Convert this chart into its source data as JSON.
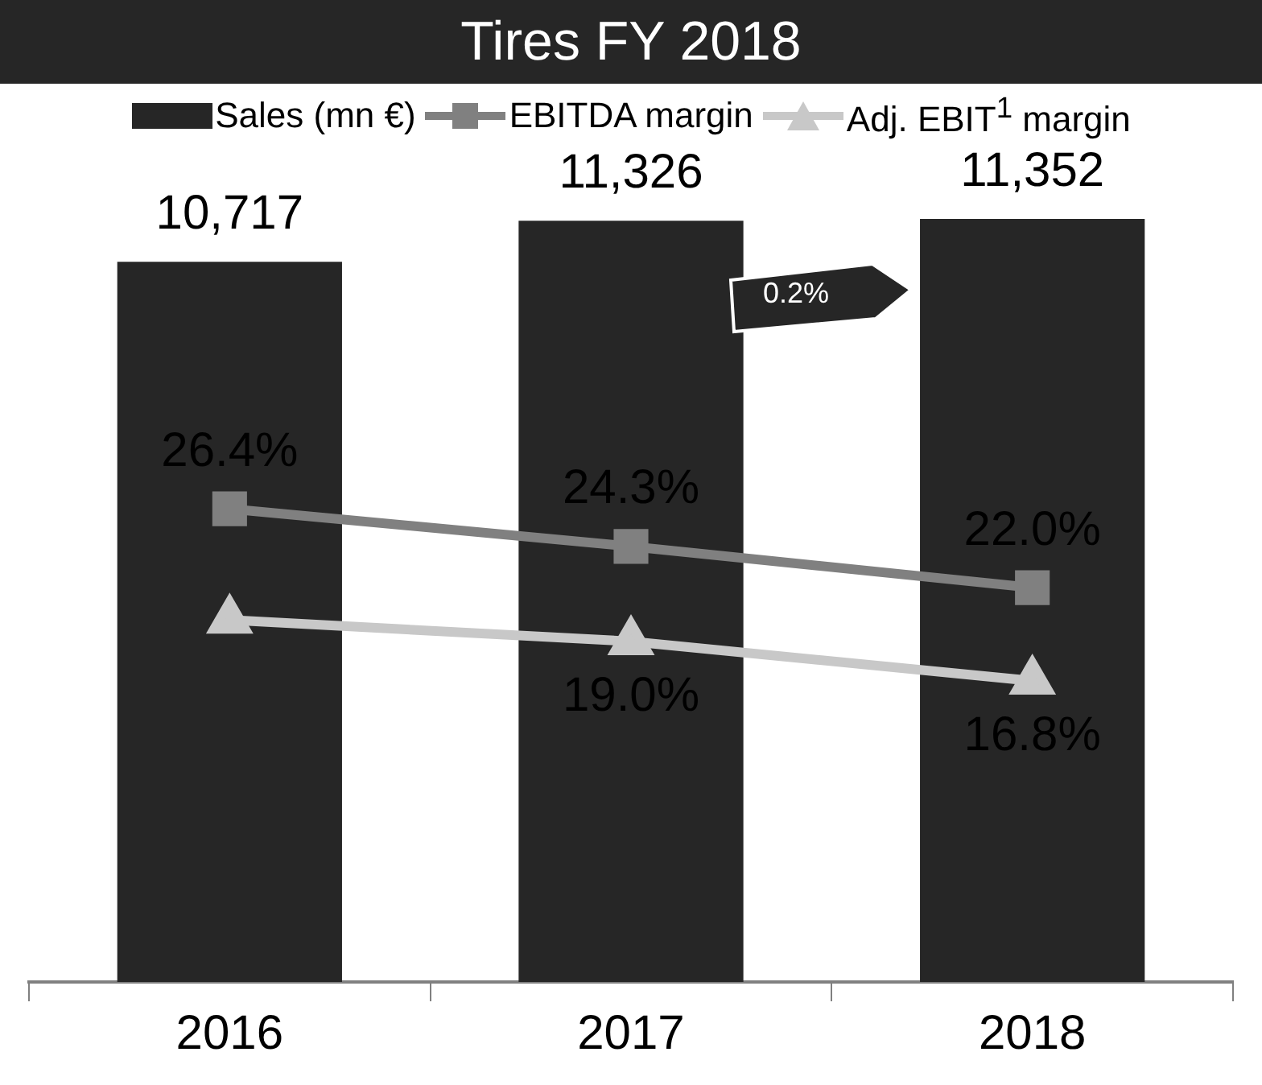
{
  "chart_data": {
    "type": "bar",
    "title": "Tires FY 2018",
    "categories": [
      "2016",
      "2017",
      "2018"
    ],
    "series": [
      {
        "name": "Sales (mn €)",
        "color": "#262626",
        "values": [
          10717,
          11326,
          11352
        ],
        "value_labels": [
          "10,717",
          "11,326",
          "11,352"
        ]
      },
      {
        "name": "EBITDA margin",
        "type": "line",
        "axis": "y2",
        "color": "#808080",
        "marker": "square",
        "values": [
          26.4,
          24.3,
          22.0
        ],
        "value_labels": [
          "26.4%",
          "24.3%",
          "22.0%"
        ]
      },
      {
        "name": "Adj. EBIT$^{1}$ margin",
        "type": "line",
        "axis": "y2",
        "color": "#c8c8c8",
        "marker": "triangle",
        "values": [
          20.2,
          19.0,
          16.8
        ],
        "value_labels": [
          null,
          "19.0%",
          "16.8%"
        ]
      }
    ],
    "tick_labels": "x",
    "legend": "top",
    "annotations": [
      "0.2%"
    ]
  }
}
